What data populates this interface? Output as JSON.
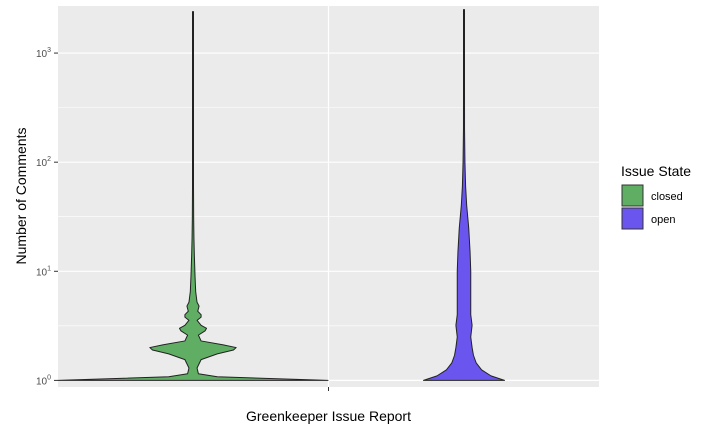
{
  "chart_data": {
    "type": "violin",
    "title": "",
    "xlabel": "Greenkeeper Issue Report",
    "ylabel": "Number of Comments",
    "y_scale": "log10",
    "ylim": [
      0.87,
      2700
    ],
    "y_ticks": [
      {
        "value": 1,
        "base": "10",
        "exp": "0"
      },
      {
        "value": 10,
        "base": "10",
        "exp": "1"
      },
      {
        "value": 100,
        "base": "10",
        "exp": "2"
      },
      {
        "value": 1000,
        "base": "10",
        "exp": "3"
      }
    ],
    "legend": {
      "title": "Issue State",
      "position": "right"
    },
    "grid": true,
    "background": "#ebebeb",
    "series": [
      {
        "name": "closed",
        "color": "#5fae64",
        "max": 2400,
        "profile": [
          [
            1.0,
            1.0
          ],
          [
            1.08,
            0.18
          ],
          [
            1.15,
            0.04
          ],
          [
            1.3,
            0.03
          ],
          [
            1.55,
            0.06
          ],
          [
            1.75,
            0.18
          ],
          [
            1.9,
            0.3
          ],
          [
            2.0,
            0.32
          ],
          [
            2.12,
            0.22
          ],
          [
            2.3,
            0.06
          ],
          [
            2.6,
            0.04
          ],
          [
            2.85,
            0.09
          ],
          [
            3.0,
            0.1
          ],
          [
            3.2,
            0.06
          ],
          [
            3.55,
            0.03
          ],
          [
            3.8,
            0.06
          ],
          [
            4.0,
            0.06
          ],
          [
            4.3,
            0.035
          ],
          [
            4.8,
            0.045
          ],
          [
            5.2,
            0.03
          ],
          [
            6.5,
            0.02
          ],
          [
            9.0,
            0.015
          ],
          [
            14,
            0.01
          ],
          [
            20,
            0.007
          ],
          [
            30,
            0.005
          ],
          [
            60,
            0.003
          ],
          [
            150,
            0.002
          ],
          [
            400,
            0.0015
          ],
          [
            1000,
            0.001
          ],
          [
            2400,
            0.0005
          ]
        ]
      },
      {
        "name": "open",
        "color": "#6a56ef",
        "max": 2500,
        "profile": [
          [
            1.0,
            0.3
          ],
          [
            1.1,
            0.2
          ],
          [
            1.25,
            0.13
          ],
          [
            1.45,
            0.09
          ],
          [
            1.7,
            0.07
          ],
          [
            2.0,
            0.06
          ],
          [
            2.5,
            0.05
          ],
          [
            3.2,
            0.06
          ],
          [
            4.0,
            0.05
          ],
          [
            6.0,
            0.05
          ],
          [
            10,
            0.05
          ],
          [
            15,
            0.045
          ],
          [
            25,
            0.035
          ],
          [
            40,
            0.02
          ],
          [
            60,
            0.012
          ],
          [
            100,
            0.007
          ],
          [
            200,
            0.004
          ],
          [
            500,
            0.002
          ],
          [
            1200,
            0.0012
          ],
          [
            2500,
            0.0005
          ]
        ]
      }
    ]
  }
}
